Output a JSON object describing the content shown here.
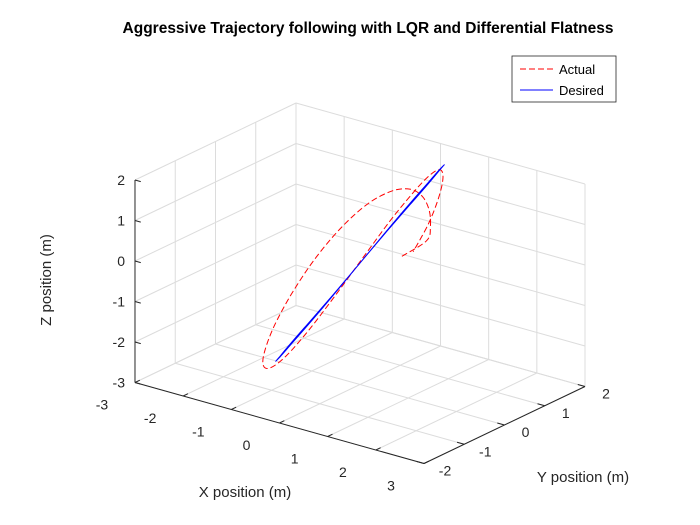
{
  "chart_data": {
    "type": "line",
    "title": "Aggressive Trajectory following with LQR and Differential Flatness",
    "xlabel": "X position (m)",
    "ylabel": "Y position (m)",
    "zlabel": "Z position (m)",
    "xlim": [
      -3,
      3
    ],
    "ylim": [
      -2,
      2
    ],
    "zlim": [
      -3,
      2
    ],
    "xticks": [
      "-3",
      "-2",
      "-1",
      "0",
      "1",
      "2",
      "3"
    ],
    "yticks": [
      "-2",
      "-1",
      "0",
      "1",
      "2"
    ],
    "zticks": [
      "-3",
      "-2",
      "-1",
      "0",
      "1",
      "2"
    ],
    "grid": true,
    "legend_position": "top-right",
    "colors": {
      "Actual": "#ff0000",
      "Desired": "#0000ff"
    },
    "series": [
      {
        "name": "Actual",
        "style": "dashed",
        "x": [
          -0.3,
          0.13,
          0.25,
          0.35,
          0.42,
          0.44,
          0.39,
          0.25,
          0.04,
          -0.2,
          -0.42,
          -0.59,
          -0.68,
          -0.69,
          -0.61,
          -0.44,
          -0.21,
          0.04,
          0.28,
          0.48,
          0.62,
          0.68,
          0.66,
          0.57,
          0.41,
          0.21,
          -0.0
        ],
        "y": [
          1.4,
          1.5,
          1.45,
          1.3,
          1.05,
          0.73,
          0.34,
          -0.08,
          -0.48,
          -0.85,
          -1.17,
          -1.41,
          -1.55,
          -1.58,
          -1.5,
          -1.31,
          -1.03,
          -0.67,
          -0.26,
          0.15,
          0.55,
          0.9,
          1.19,
          1.38,
          1.47,
          1.45,
          1.32
        ],
        "z": [
          -0.6,
          -0.12,
          0.3,
          0.8,
          1.28,
          1.62,
          1.75,
          1.6,
          1.15,
          0.48,
          -0.3,
          -1.05,
          -1.65,
          -2.0,
          -2.08,
          -1.82,
          -1.25,
          -0.48,
          0.35,
          1.1,
          1.65,
          1.95,
          1.96,
          1.65,
          1.07,
          0.35,
          -0.35
        ]
      },
      {
        "name": "Desired",
        "style": "solid",
        "x": [
          0.0,
          0.19,
          0.36,
          0.5,
          0.59,
          0.63,
          0.6,
          0.52,
          0.38,
          0.2,
          0.0,
          -0.2,
          -0.38,
          -0.52,
          -0.6,
          -0.63,
          -0.59,
          -0.5,
          -0.36,
          -0.19,
          0.0
        ],
        "y": [
          0.0,
          0.42,
          0.8,
          1.09,
          1.27,
          1.34,
          1.27,
          1.09,
          0.8,
          0.42,
          0.0,
          -0.42,
          -0.8,
          -1.09,
          -1.27,
          -1.34,
          -1.27,
          -1.09,
          -0.8,
          -0.42,
          0.0
        ],
        "z": [
          0.0,
          0.64,
          1.2,
          1.63,
          1.9,
          2.0,
          1.9,
          1.63,
          1.2,
          0.64,
          0.0,
          -0.64,
          -1.2,
          -1.63,
          -1.9,
          -2.0,
          -1.9,
          -1.63,
          -1.2,
          -0.64,
          0.0
        ]
      }
    ]
  }
}
